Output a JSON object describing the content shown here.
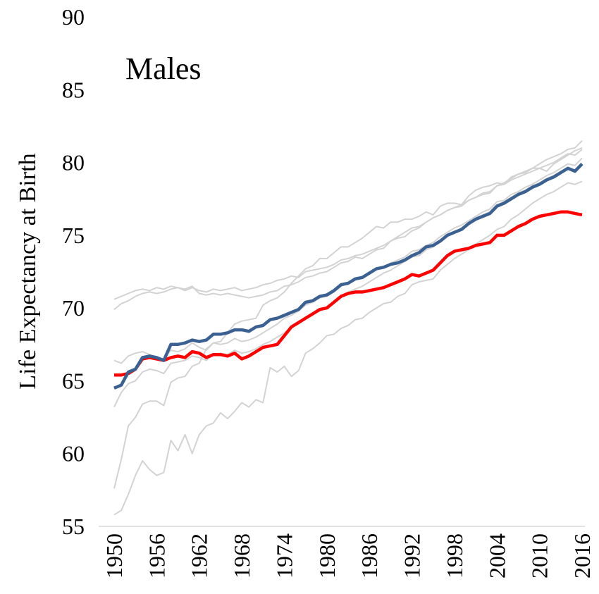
{
  "chart_data": {
    "type": "line",
    "title": "Males",
    "y_label": "Life Expectancy at Birth",
    "x": [
      1950,
      1951,
      1952,
      1953,
      1954,
      1955,
      1956,
      1957,
      1958,
      1959,
      1960,
      1961,
      1962,
      1963,
      1964,
      1965,
      1966,
      1967,
      1968,
      1969,
      1970,
      1971,
      1972,
      1973,
      1974,
      1975,
      1976,
      1977,
      1978,
      1979,
      1980,
      1981,
      1982,
      1983,
      1984,
      1985,
      1986,
      1987,
      1988,
      1989,
      1990,
      1991,
      1992,
      1993,
      1994,
      1995,
      1996,
      1997,
      1998,
      1999,
      2000,
      2001,
      2002,
      2003,
      2004,
      2005,
      2006,
      2007,
      2008,
      2009,
      2010,
      2011,
      2012,
      2013,
      2014,
      2015,
      2016
    ],
    "xlim": [
      1950,
      2016
    ],
    "xticks": [
      1950,
      1956,
      1962,
      1968,
      1974,
      1980,
      1986,
      1992,
      1998,
      2004,
      2010,
      2016
    ],
    "ylim": [
      55,
      90
    ],
    "yticks": [
      55,
      60,
      65,
      70,
      75,
      80,
      85,
      90
    ],
    "grid": false,
    "series": [
      {
        "color": "#d3d3d3",
        "values": [
          69.9,
          70.3,
          70.5,
          70.8,
          71.0,
          71.1,
          71.0,
          71.1,
          71.3,
          71.4,
          71.2,
          71.4,
          71.2,
          71.1,
          71.3,
          71.2,
          71.3,
          71.4,
          71.2,
          71.3,
          71.4,
          71.6,
          71.7,
          71.9,
          72.0,
          72.2,
          72.1,
          72.5,
          72.6,
          72.7,
          72.8,
          73.0,
          73.3,
          73.4,
          73.6,
          73.7,
          73.9,
          74.1,
          74.3,
          74.6,
          74.8,
          74.9,
          75.3,
          75.5,
          75.9,
          76.2,
          76.4,
          76.7,
          76.9,
          77.1,
          77.4,
          77.6,
          77.8,
          77.9,
          78.4,
          78.5,
          78.8,
          79.0,
          79.2,
          79.4,
          79.6,
          79.8,
          80.0,
          80.3,
          80.6,
          80.5,
          80.9
        ]
      },
      {
        "color": "#d3d3d3",
        "values": [
          70.6,
          70.8,
          71.0,
          71.2,
          71.3,
          71.2,
          71.4,
          71.3,
          71.5,
          71.4,
          71.3,
          71.5,
          71.0,
          70.9,
          71.0,
          70.9,
          71.0,
          70.9,
          70.8,
          70.7,
          70.8,
          70.9,
          71.1,
          71.2,
          71.5,
          71.6,
          71.8,
          72.1,
          72.2,
          72.4,
          72.5,
          72.8,
          73.1,
          73.2,
          73.5,
          73.4,
          73.7,
          74.0,
          74.1,
          74.6,
          74.9,
          75.2,
          75.5,
          75.6,
          75.9,
          76.2,
          76.4,
          76.7,
          76.9,
          77.0,
          77.4,
          77.6,
          77.9,
          78.0,
          78.4,
          78.6,
          78.9,
          79.2,
          79.4,
          79.6,
          79.9,
          80.2,
          80.4,
          80.6,
          80.9,
          81.0,
          81.5
        ]
      },
      {
        "color": "#d3d3d3",
        "values": [
          57.6,
          59.6,
          61.9,
          62.5,
          63.4,
          63.6,
          63.6,
          63.3,
          64.9,
          65.2,
          65.3,
          66.0,
          66.2,
          67.2,
          67.6,
          67.7,
          68.3,
          68.9,
          69.1,
          69.2,
          69.3,
          70.2,
          70.5,
          70.7,
          71.1,
          71.7,
          72.2,
          72.7,
          72.9,
          73.4,
          73.4,
          73.8,
          74.2,
          74.2,
          74.5,
          74.8,
          75.2,
          75.6,
          75.5,
          75.9,
          75.9,
          76.1,
          76.1,
          76.3,
          76.6,
          76.4,
          77.0,
          77.2,
          77.2,
          77.1,
          77.7,
          78.1,
          78.3,
          78.4,
          78.6,
          78.5,
          79.0,
          79.2,
          79.3,
          79.6,
          79.6,
          79.4,
          79.9,
          80.2,
          80.5,
          80.8,
          81.0
        ]
      },
      {
        "color": "#d3d3d3",
        "values": [
          55.8,
          56.1,
          57.2,
          58.5,
          59.5,
          58.9,
          58.5,
          58.7,
          60.9,
          60.2,
          61.3,
          60.0,
          61.3,
          61.9,
          62.1,
          62.8,
          62.4,
          62.9,
          63.5,
          63.2,
          63.7,
          63.5,
          65.9,
          65.6,
          66.0,
          65.3,
          65.7,
          66.9,
          67.2,
          67.6,
          68.1,
          68.2,
          68.6,
          68.8,
          69.2,
          69.3,
          69.7,
          70.0,
          70.3,
          70.4,
          70.8,
          71.0,
          71.6,
          71.8,
          71.9,
          72.0,
          72.6,
          73.0,
          73.4,
          73.7,
          74.0,
          74.4,
          74.7,
          75.0,
          75.4,
          75.6,
          76.1,
          76.4,
          76.8,
          77.2,
          77.5,
          77.8,
          78.0,
          78.3,
          78.6,
          78.5,
          78.7
        ]
      },
      {
        "color": "#d3d3d3",
        "values": [
          63.2,
          64.2,
          64.8,
          65.0,
          65.6,
          65.8,
          65.7,
          65.5,
          66.2,
          66.3,
          66.4,
          66.7,
          66.6,
          66.4,
          66.8,
          66.9,
          66.8,
          67.1,
          66.9,
          67.0,
          67.2,
          67.5,
          67.7,
          68.0,
          68.3,
          68.7,
          69.0,
          69.4,
          69.6,
          69.8,
          70.1,
          70.4,
          70.8,
          71.1,
          71.3,
          71.5,
          71.8,
          72.1,
          72.4,
          72.6,
          72.9,
          73.2,
          73.5,
          73.6,
          74.0,
          74.2,
          74.6,
          75.0,
          75.2,
          75.5,
          75.9,
          76.2,
          76.4,
          76.6,
          77.1,
          77.3,
          77.6,
          77.9,
          78.1,
          78.4,
          78.6,
          78.9,
          79.1,
          79.4,
          79.6,
          79.5,
          79.9
        ]
      },
      {
        "color": "#d3d3d3",
        "values": [
          66.4,
          66.2,
          66.7,
          66.9,
          67.0,
          66.8,
          66.6,
          66.5,
          67.1,
          67.0,
          67.2,
          67.6,
          67.3,
          67.1,
          67.6,
          67.5,
          67.6,
          67.9,
          67.7,
          67.8,
          68.0,
          68.3,
          68.6,
          68.9,
          69.3,
          69.5,
          69.8,
          70.2,
          70.4,
          70.7,
          70.8,
          71.1,
          71.5,
          71.7,
          72.0,
          72.1,
          72.4,
          72.7,
          72.8,
          73.1,
          73.3,
          73.5,
          73.9,
          74.0,
          74.3,
          74.5,
          74.9,
          75.2,
          75.5,
          75.7,
          76.0,
          76.3,
          76.6,
          76.8,
          77.3,
          77.4,
          77.8,
          78.0,
          78.3,
          78.5,
          78.8,
          79.1,
          79.3,
          79.6,
          79.9,
          79.8,
          80.3
        ]
      },
      {
        "color": "#ff0000",
        "values": [
          65.4,
          65.4,
          65.5,
          65.8,
          66.5,
          66.6,
          66.5,
          66.4,
          66.6,
          66.7,
          66.6,
          67.0,
          66.9,
          66.6,
          66.8,
          66.8,
          66.7,
          66.9,
          66.5,
          66.7,
          67.0,
          67.3,
          67.4,
          67.5,
          68.1,
          68.7,
          69.0,
          69.3,
          69.6,
          69.9,
          70.0,
          70.4,
          70.8,
          71.0,
          71.1,
          71.1,
          71.2,
          71.3,
          71.4,
          71.6,
          71.8,
          72.0,
          72.3,
          72.2,
          72.4,
          72.6,
          73.1,
          73.6,
          73.9,
          74.0,
          74.1,
          74.3,
          74.4,
          74.5,
          75.0,
          75.0,
          75.3,
          75.6,
          75.8,
          76.1,
          76.3,
          76.4,
          76.5,
          76.6,
          76.6,
          76.5,
          76.4
        ]
      },
      {
        "color": "#3b6092",
        "values": [
          64.5,
          64.7,
          65.6,
          65.8,
          66.6,
          66.7,
          66.6,
          66.4,
          67.5,
          67.5,
          67.6,
          67.8,
          67.7,
          67.8,
          68.2,
          68.2,
          68.3,
          68.5,
          68.5,
          68.4,
          68.7,
          68.8,
          69.2,
          69.3,
          69.5,
          69.7,
          69.9,
          70.4,
          70.5,
          70.8,
          70.9,
          71.2,
          71.6,
          71.7,
          72.0,
          72.1,
          72.4,
          72.7,
          72.8,
          73.0,
          73.1,
          73.3,
          73.6,
          73.8,
          74.2,
          74.3,
          74.6,
          75.0,
          75.2,
          75.4,
          75.8,
          76.1,
          76.3,
          76.5,
          77.0,
          77.2,
          77.5,
          77.8,
          78.0,
          78.3,
          78.5,
          78.8,
          79.0,
          79.3,
          79.6,
          79.4,
          79.9
        ]
      }
    ]
  }
}
